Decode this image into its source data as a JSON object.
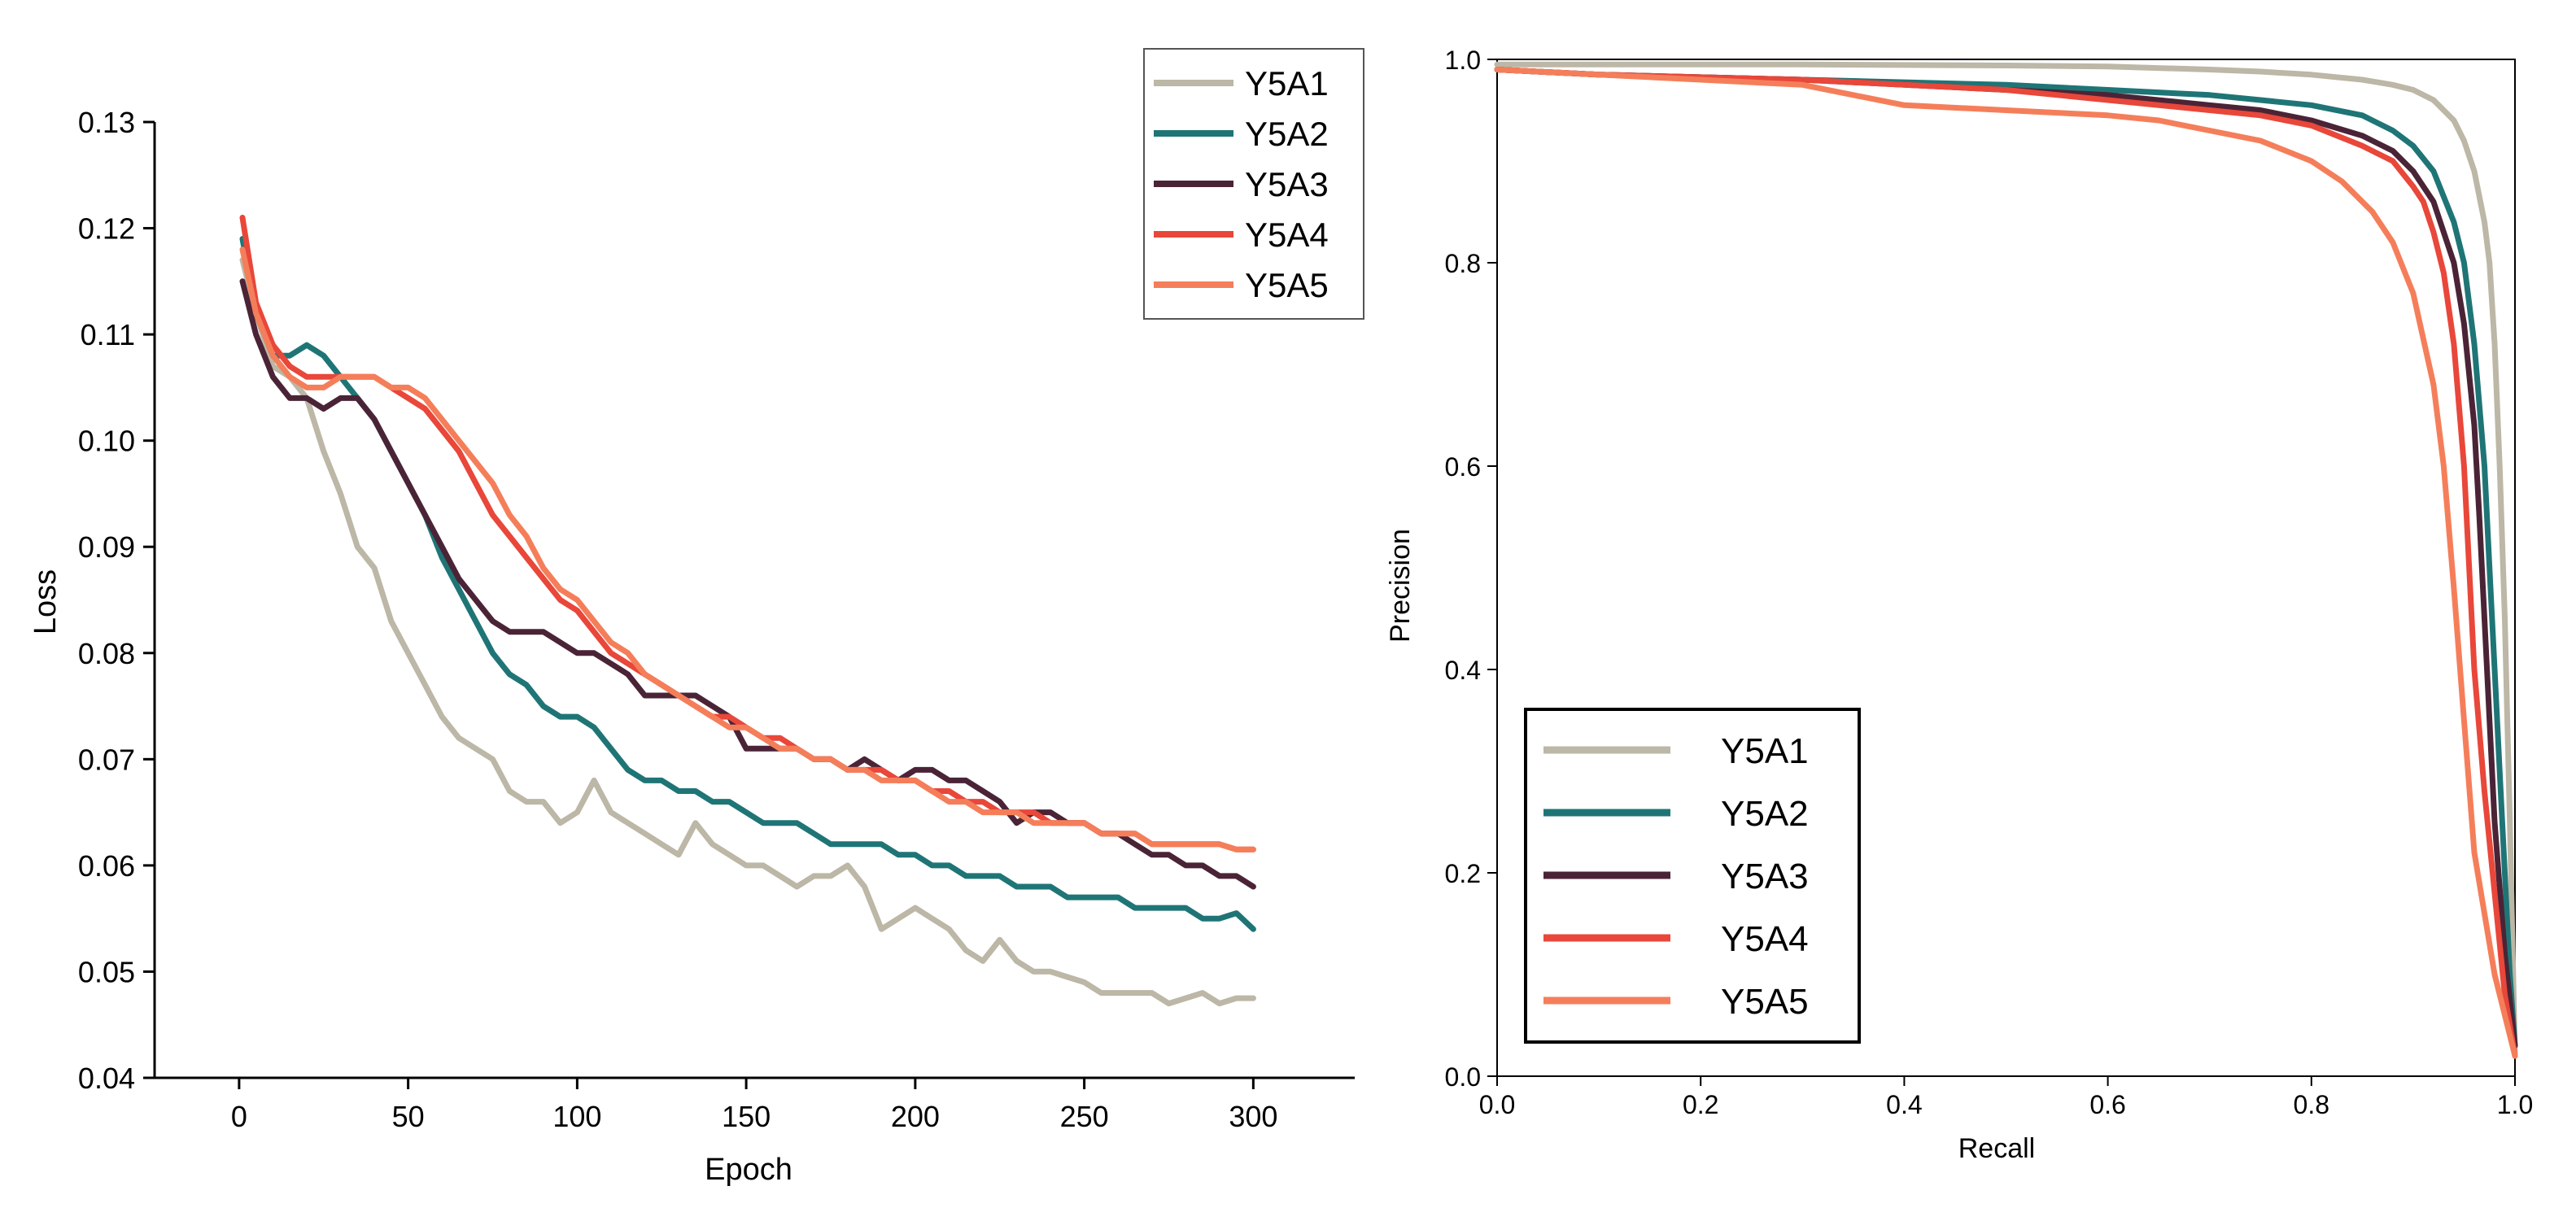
{
  "chart_data": [
    {
      "type": "line",
      "title": "",
      "xlabel": "Epoch",
      "ylabel": "Loss",
      "xlim": [
        -25,
        330
      ],
      "ylim": [
        0.04,
        0.13
      ],
      "xticks": [
        "0",
        "50",
        "100",
        "150",
        "200",
        "250",
        "300"
      ],
      "xtick_values": [
        0,
        50,
        100,
        150,
        200,
        250,
        300
      ],
      "yticks": [
        "0.04",
        "0.05",
        "0.06",
        "0.07",
        "0.08",
        "0.09",
        "0.10",
        "0.11",
        "0.12",
        "0.13"
      ],
      "ytick_values": [
        0.04,
        0.05,
        0.06,
        0.07,
        0.08,
        0.09,
        0.1,
        0.11,
        0.12,
        0.13
      ],
      "legend_position": "top-right",
      "series": [
        {
          "name": "Y5A1",
          "color": "#bcb7a6",
          "x": [
            1,
            5,
            10,
            15,
            20,
            25,
            30,
            35,
            40,
            45,
            50,
            55,
            60,
            65,
            70,
            75,
            80,
            85,
            90,
            95,
            100,
            105,
            110,
            115,
            120,
            125,
            130,
            135,
            140,
            145,
            150,
            155,
            160,
            165,
            170,
            175,
            180,
            185,
            190,
            195,
            200,
            205,
            210,
            215,
            220,
            225,
            230,
            235,
            240,
            245,
            250,
            255,
            260,
            265,
            270,
            275,
            280,
            285,
            290,
            295,
            300
          ],
          "y": [
            0.117,
            0.112,
            0.107,
            0.106,
            0.104,
            0.099,
            0.095,
            0.09,
            0.088,
            0.083,
            0.08,
            0.077,
            0.074,
            0.072,
            0.071,
            0.07,
            0.067,
            0.066,
            0.066,
            0.064,
            0.065,
            0.068,
            0.065,
            0.064,
            0.063,
            0.062,
            0.061,
            0.064,
            0.062,
            0.061,
            0.06,
            0.06,
            0.059,
            0.058,
            0.059,
            0.059,
            0.06,
            0.058,
            0.054,
            0.055,
            0.056,
            0.055,
            0.054,
            0.052,
            0.051,
            0.053,
            0.051,
            0.05,
            0.05,
            0.0495,
            0.049,
            0.048,
            0.048,
            0.048,
            0.048,
            0.047,
            0.0475,
            0.048,
            0.047,
            0.0475,
            0.0475
          ]
        },
        {
          "name": "Y5A2",
          "color": "#1f7576",
          "x": [
            1,
            5,
            10,
            15,
            20,
            25,
            30,
            35,
            40,
            45,
            50,
            55,
            60,
            65,
            70,
            75,
            80,
            85,
            90,
            95,
            100,
            105,
            110,
            115,
            120,
            125,
            130,
            135,
            140,
            145,
            150,
            155,
            160,
            165,
            170,
            175,
            180,
            185,
            190,
            195,
            200,
            205,
            210,
            215,
            220,
            225,
            230,
            235,
            240,
            245,
            250,
            255,
            260,
            265,
            270,
            275,
            280,
            285,
            290,
            295,
            300
          ],
          "y": [
            0.119,
            0.112,
            0.108,
            0.108,
            0.109,
            0.108,
            0.106,
            0.104,
            0.102,
            0.099,
            0.096,
            0.093,
            0.089,
            0.086,
            0.083,
            0.08,
            0.078,
            0.077,
            0.075,
            0.074,
            0.074,
            0.073,
            0.071,
            0.069,
            0.068,
            0.068,
            0.067,
            0.067,
            0.066,
            0.066,
            0.065,
            0.064,
            0.064,
            0.064,
            0.063,
            0.062,
            0.062,
            0.062,
            0.062,
            0.061,
            0.061,
            0.06,
            0.06,
            0.059,
            0.059,
            0.059,
            0.058,
            0.058,
            0.058,
            0.057,
            0.057,
            0.057,
            0.057,
            0.056,
            0.056,
            0.056,
            0.056,
            0.055,
            0.055,
            0.0555,
            0.054
          ]
        },
        {
          "name": "Y5A3",
          "color": "#4a2436",
          "x": [
            1,
            5,
            10,
            15,
            20,
            25,
            30,
            35,
            40,
            45,
            50,
            55,
            60,
            65,
            70,
            75,
            80,
            85,
            90,
            95,
            100,
            105,
            110,
            115,
            120,
            125,
            130,
            135,
            140,
            145,
            150,
            155,
            160,
            165,
            170,
            175,
            180,
            185,
            190,
            195,
            200,
            205,
            210,
            215,
            220,
            225,
            230,
            235,
            240,
            245,
            250,
            255,
            260,
            265,
            270,
            275,
            280,
            285,
            290,
            295,
            300
          ],
          "y": [
            0.115,
            0.11,
            0.106,
            0.104,
            0.104,
            0.103,
            0.104,
            0.104,
            0.102,
            0.099,
            0.096,
            0.093,
            0.09,
            0.087,
            0.085,
            0.083,
            0.082,
            0.082,
            0.082,
            0.081,
            0.08,
            0.08,
            0.079,
            0.078,
            0.076,
            0.076,
            0.076,
            0.076,
            0.075,
            0.074,
            0.071,
            0.071,
            0.071,
            0.071,
            0.07,
            0.07,
            0.069,
            0.07,
            0.069,
            0.068,
            0.069,
            0.069,
            0.068,
            0.068,
            0.067,
            0.066,
            0.064,
            0.065,
            0.065,
            0.064,
            0.064,
            0.063,
            0.063,
            0.062,
            0.061,
            0.061,
            0.06,
            0.06,
            0.059,
            0.059,
            0.058
          ]
        },
        {
          "name": "Y5A4",
          "color": "#e8473a",
          "x": [
            1,
            5,
            10,
            15,
            20,
            25,
            30,
            35,
            40,
            45,
            50,
            55,
            60,
            65,
            70,
            75,
            80,
            85,
            90,
            95,
            100,
            105,
            110,
            115,
            120,
            125,
            130,
            135,
            140,
            145,
            150,
            155,
            160,
            165,
            170,
            175,
            180,
            185,
            190,
            195,
            200,
            205,
            210,
            215,
            220,
            225,
            230,
            235,
            240,
            245,
            250,
            255,
            260,
            265,
            270,
            275,
            280,
            285,
            290,
            295,
            300
          ],
          "y": [
            0.121,
            0.113,
            0.109,
            0.107,
            0.106,
            0.106,
            0.106,
            0.106,
            0.106,
            0.105,
            0.104,
            0.103,
            0.101,
            0.099,
            0.096,
            0.093,
            0.091,
            0.089,
            0.087,
            0.085,
            0.084,
            0.082,
            0.08,
            0.079,
            0.078,
            0.077,
            0.076,
            0.075,
            0.074,
            0.074,
            0.073,
            0.072,
            0.072,
            0.071,
            0.07,
            0.07,
            0.069,
            0.069,
            0.069,
            0.068,
            0.068,
            0.067,
            0.067,
            0.066,
            0.066,
            0.065,
            0.065,
            0.065,
            0.064,
            0.064,
            0.064,
            0.063,
            0.063,
            0.063,
            0.062,
            0.062,
            0.062,
            0.062,
            0.062,
            0.0615,
            0.0615
          ]
        },
        {
          "name": "Y5A5",
          "color": "#f57e5a",
          "x": [
            1,
            5,
            10,
            15,
            20,
            25,
            30,
            35,
            40,
            45,
            50,
            55,
            60,
            65,
            70,
            75,
            80,
            85,
            90,
            95,
            100,
            105,
            110,
            115,
            120,
            125,
            130,
            135,
            140,
            145,
            150,
            155,
            160,
            165,
            170,
            175,
            180,
            185,
            190,
            195,
            200,
            205,
            210,
            215,
            220,
            225,
            230,
            235,
            240,
            245,
            250,
            255,
            260,
            265,
            270,
            275,
            280,
            285,
            290,
            295,
            300
          ],
          "y": [
            0.118,
            0.112,
            0.108,
            0.106,
            0.105,
            0.105,
            0.106,
            0.106,
            0.106,
            0.105,
            0.105,
            0.104,
            0.102,
            0.1,
            0.098,
            0.096,
            0.093,
            0.091,
            0.088,
            0.086,
            0.085,
            0.083,
            0.081,
            0.08,
            0.078,
            0.077,
            0.076,
            0.075,
            0.074,
            0.073,
            0.073,
            0.072,
            0.071,
            0.071,
            0.07,
            0.07,
            0.069,
            0.069,
            0.068,
            0.068,
            0.068,
            0.067,
            0.066,
            0.066,
            0.065,
            0.065,
            0.065,
            0.064,
            0.064,
            0.064,
            0.064,
            0.063,
            0.063,
            0.063,
            0.062,
            0.062,
            0.062,
            0.062,
            0.062,
            0.0615,
            0.0615
          ]
        }
      ]
    },
    {
      "type": "line",
      "title": "",
      "xlabel": "Recall",
      "ylabel": "Precision",
      "xlim": [
        0.0,
        1.0
      ],
      "ylim": [
        0.0,
        1.0
      ],
      "xticks": [
        "0.0",
        "0.2",
        "0.4",
        "0.6",
        "0.8",
        "1.0"
      ],
      "xtick_values": [
        0.0,
        0.2,
        0.4,
        0.6,
        0.8,
        1.0
      ],
      "yticks": [
        "0.0",
        "0.2",
        "0.4",
        "0.6",
        "0.8",
        "1.0"
      ],
      "ytick_values": [
        0.0,
        0.2,
        0.4,
        0.6,
        0.8,
        1.0
      ],
      "legend_position": "bottom-left",
      "series": [
        {
          "name": "Y5A1",
          "color": "#bcb7a6",
          "x": [
            0.0,
            0.1,
            0.3,
            0.5,
            0.6,
            0.7,
            0.75,
            0.8,
            0.85,
            0.88,
            0.9,
            0.92,
            0.94,
            0.95,
            0.96,
            0.97,
            0.975,
            0.98,
            0.985,
            0.99,
            0.995,
            1.0
          ],
          "y": [
            0.995,
            0.995,
            0.995,
            0.994,
            0.993,
            0.99,
            0.988,
            0.985,
            0.98,
            0.975,
            0.97,
            0.96,
            0.94,
            0.92,
            0.89,
            0.84,
            0.8,
            0.72,
            0.6,
            0.45,
            0.25,
            0.02
          ]
        },
        {
          "name": "Y5A2",
          "color": "#1f7576",
          "x": [
            0.0,
            0.1,
            0.3,
            0.5,
            0.6,
            0.7,
            0.75,
            0.8,
            0.85,
            0.88,
            0.9,
            0.92,
            0.94,
            0.95,
            0.96,
            0.97,
            0.975,
            0.98,
            0.985,
            0.99,
            0.995,
            1.0
          ],
          "y": [
            0.99,
            0.985,
            0.98,
            0.975,
            0.97,
            0.965,
            0.96,
            0.955,
            0.945,
            0.93,
            0.915,
            0.89,
            0.84,
            0.8,
            0.72,
            0.6,
            0.5,
            0.4,
            0.3,
            0.2,
            0.1,
            0.03
          ]
        },
        {
          "name": "Y5A3",
          "color": "#4a2436",
          "x": [
            0.0,
            0.1,
            0.3,
            0.5,
            0.6,
            0.7,
            0.75,
            0.8,
            0.85,
            0.88,
            0.9,
            0.92,
            0.93,
            0.94,
            0.95,
            0.96,
            0.965,
            0.97,
            0.975,
            0.98,
            0.99,
            1.0
          ],
          "y": [
            0.99,
            0.985,
            0.98,
            0.97,
            0.965,
            0.955,
            0.95,
            0.94,
            0.925,
            0.91,
            0.89,
            0.86,
            0.83,
            0.8,
            0.74,
            0.64,
            0.55,
            0.45,
            0.35,
            0.25,
            0.12,
            0.03
          ]
        },
        {
          "name": "Y5A4",
          "color": "#e8473a",
          "x": [
            0.0,
            0.1,
            0.3,
            0.5,
            0.6,
            0.7,
            0.75,
            0.8,
            0.85,
            0.88,
            0.9,
            0.91,
            0.92,
            0.93,
            0.94,
            0.95,
            0.955,
            0.96,
            0.97,
            0.98,
            0.99,
            1.0
          ],
          "y": [
            0.99,
            0.985,
            0.98,
            0.97,
            0.96,
            0.95,
            0.945,
            0.935,
            0.915,
            0.9,
            0.875,
            0.86,
            0.83,
            0.79,
            0.72,
            0.6,
            0.5,
            0.4,
            0.28,
            0.18,
            0.08,
            0.02
          ]
        },
        {
          "name": "Y5A5",
          "color": "#f57e5a",
          "x": [
            0.0,
            0.1,
            0.2,
            0.3,
            0.35,
            0.4,
            0.5,
            0.6,
            0.65,
            0.7,
            0.75,
            0.8,
            0.83,
            0.86,
            0.88,
            0.9,
            0.92,
            0.93,
            0.94,
            0.95,
            0.96,
            0.98,
            1.0
          ],
          "y": [
            0.99,
            0.985,
            0.98,
            0.975,
            0.965,
            0.955,
            0.95,
            0.945,
            0.94,
            0.93,
            0.92,
            0.9,
            0.88,
            0.85,
            0.82,
            0.77,
            0.68,
            0.6,
            0.48,
            0.35,
            0.22,
            0.1,
            0.02
          ]
        }
      ]
    }
  ]
}
